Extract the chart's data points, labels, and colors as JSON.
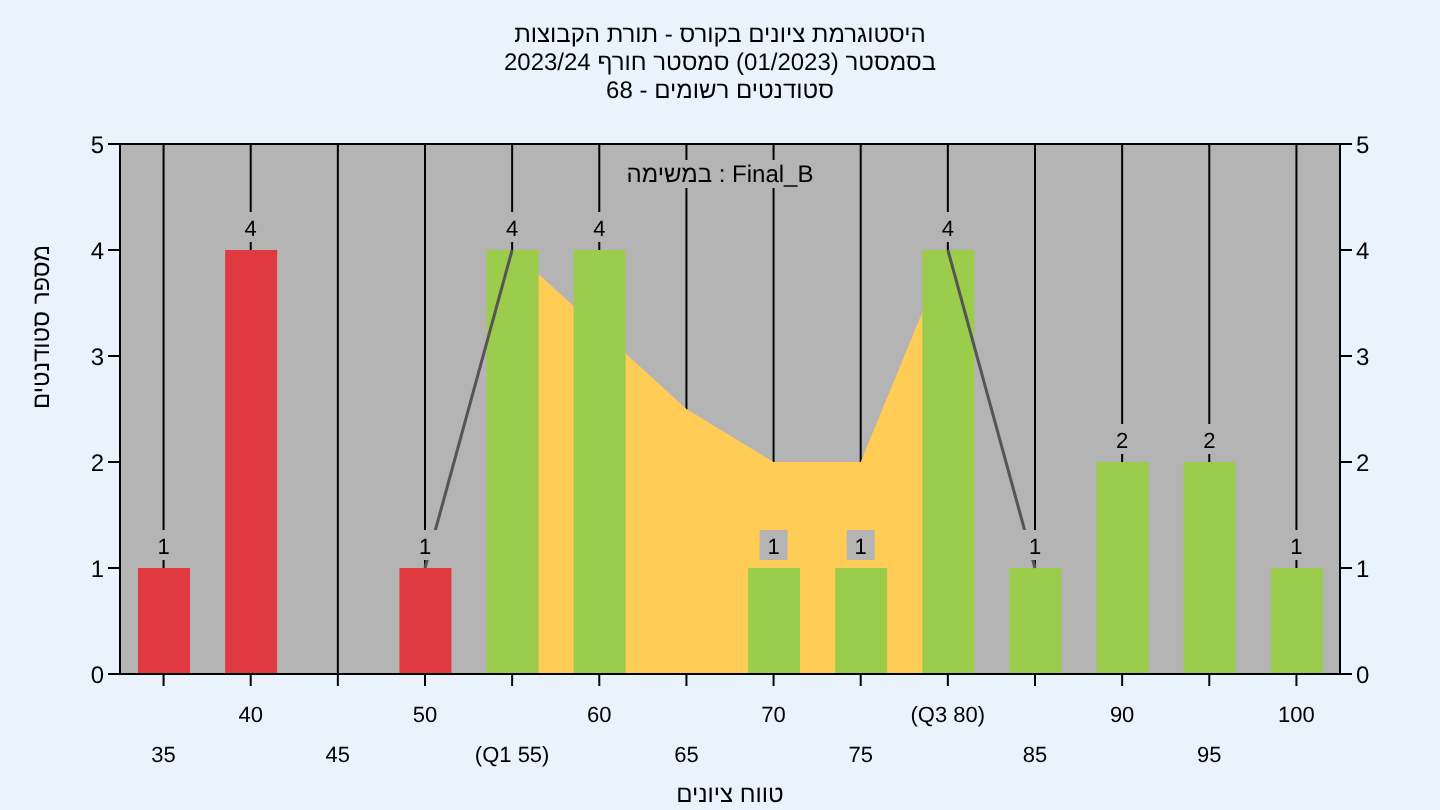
{
  "chart_data": {
    "type": "bar",
    "title": "היסטוגרמת ציונים בקורס - תורת הקבוצות",
    "subtitle": "בסמסטר  (01/2023)  סמסטר חורף 2023/24\nסטודנטים רשומים - 68",
    "annotations": [
      "במשימה : Final_B"
    ],
    "xlabel": "טווח ציונים",
    "ylabel": "מספר סטודנטים",
    "categories": [
      "35",
      "40",
      "45",
      "50",
      "(Q1 55)",
      "60",
      "65",
      "70",
      "75",
      "(Q3 80)",
      "85",
      "90",
      "95",
      "100"
    ],
    "series": [
      {
        "type": "area",
        "color": "#ffcc55",
        "values": [
          null,
          null,
          null,
          null,
          4,
          null,
          2.5,
          2,
          2,
          4,
          null,
          null,
          null,
          null
        ]
      },
      {
        "type": "line",
        "color": "#555555",
        "values": [
          null,
          null,
          null,
          1,
          4,
          null,
          null,
          null,
          null,
          4,
          1,
          null,
          null,
          null
        ]
      },
      {
        "colors": [
          "#e03a40",
          "#e03a40",
          "#e03a40",
          "#e03a40",
          "#9ccc4c",
          "#9ccc4c",
          "#9ccc4c",
          "#9ccc4c",
          "#9ccc4c",
          "#9ccc4c",
          "#9ccc4c",
          "#9ccc4c",
          "#9ccc4c",
          "#9ccc4c"
        ],
        "values": [
          1,
          4,
          0,
          1,
          4,
          4,
          0,
          1,
          1,
          4,
          1,
          2,
          2,
          1
        ],
        "value_labels": [
          "1",
          "4",
          null,
          "1",
          "4",
          "4",
          null,
          "1",
          "1",
          "4",
          "1",
          "2",
          "2",
          "1"
        ]
      }
    ],
    "ylim": [
      0,
      5
    ],
    "yticks": [
      0,
      1,
      2,
      3,
      4,
      5
    ],
    "y2lim": [
      0,
      5
    ],
    "y2ticks": [
      0,
      1,
      2,
      3,
      4,
      5
    ],
    "grid": true,
    "legend": false
  }
}
